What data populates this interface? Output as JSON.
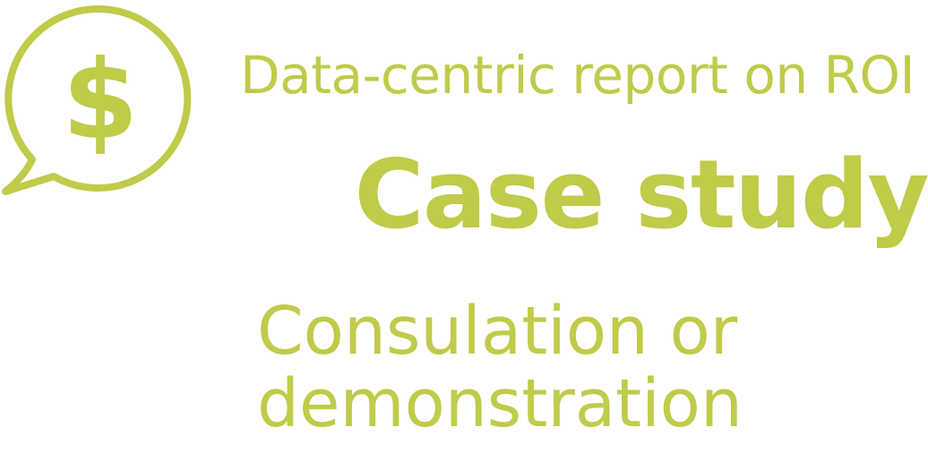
{
  "colors": {
    "accent": "#BFCB49",
    "background": "#FFFFFF"
  },
  "icon": {
    "name": "dollar-speech-bubble-icon",
    "symbol": "$"
  },
  "texts": {
    "subtitle": "Data-centric report on ROI",
    "title": "Case study",
    "cta_line1": "Consulation or",
    "cta_line2": "demonstration"
  }
}
